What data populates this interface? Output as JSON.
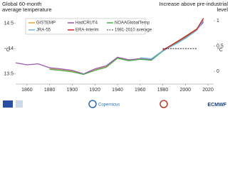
{
  "chart_data": {
    "type": "line",
    "title": "Global 60-month average temperature",
    "title_right": "Increase above pre-industrial level",
    "y_unit": "°C",
    "y2_unit": "°C",
    "x": [
      1850,
      1860,
      1870,
      1880,
      1890,
      1900,
      1910,
      1920,
      1930,
      1940,
      1950,
      1960,
      1970,
      1980,
      1990,
      2000,
      2010,
      2016
    ],
    "xlim": [
      1850,
      2025
    ],
    "xticks": [
      1860,
      1880,
      1900,
      1920,
      1940,
      1960,
      1980,
      2000,
      2020
    ],
    "ylim": [
      13.3,
      14.65
    ],
    "yticks": [
      13.5,
      14,
      14.5
    ],
    "y2lim": [
      -0.25,
      1.1
    ],
    "y2ticks": [
      0,
      0.5,
      1
    ],
    "series": [
      {
        "name": "GISTEMP",
        "color": "#f0a040",
        "values": [
          null,
          null,
          null,
          13.6,
          13.58,
          13.55,
          13.5,
          13.58,
          13.64,
          13.82,
          13.77,
          13.8,
          13.78,
          13.96,
          14.1,
          14.24,
          14.39,
          14.56
        ]
      },
      {
        "name": "HadCRUT4",
        "color": "#9b59b6",
        "values": [
          13.72,
          13.68,
          13.7,
          13.62,
          13.6,
          13.57,
          13.5,
          13.6,
          13.66,
          13.83,
          13.78,
          13.8,
          13.78,
          13.95,
          14.08,
          14.22,
          14.37,
          14.52
        ]
      },
      {
        "name": "NOAAGlobalTemp",
        "color": "#4caf50",
        "values": [
          null,
          null,
          null,
          13.59,
          13.57,
          13.54,
          13.49,
          13.57,
          13.63,
          13.81,
          13.76,
          13.79,
          13.77,
          13.95,
          14.09,
          14.23,
          14.38,
          14.55
        ]
      },
      {
        "name": "JRA-55",
        "color": "#6fb6e0",
        "values": [
          null,
          null,
          null,
          null,
          null,
          null,
          null,
          null,
          null,
          null,
          null,
          13.82,
          13.8,
          13.96,
          14.07,
          14.2,
          14.36,
          14.55
        ]
      },
      {
        "name": "ERA-Interim",
        "color": "#d62020",
        "values": [
          null,
          null,
          null,
          null,
          null,
          null,
          null,
          null,
          null,
          null,
          null,
          null,
          null,
          13.97,
          14.1,
          14.24,
          14.38,
          14.6
        ]
      },
      {
        "name": "1981-2010 average",
        "color": "#000000",
        "dashed": true,
        "values": [
          null,
          null,
          null,
          null,
          null,
          null,
          null,
          null,
          null,
          null,
          null,
          null,
          null,
          14.0,
          14.0,
          14.0,
          14.0,
          null
        ]
      }
    ],
    "footer": {
      "logo_left": "Copernicus",
      "logo_right": "ECMWF"
    }
  }
}
